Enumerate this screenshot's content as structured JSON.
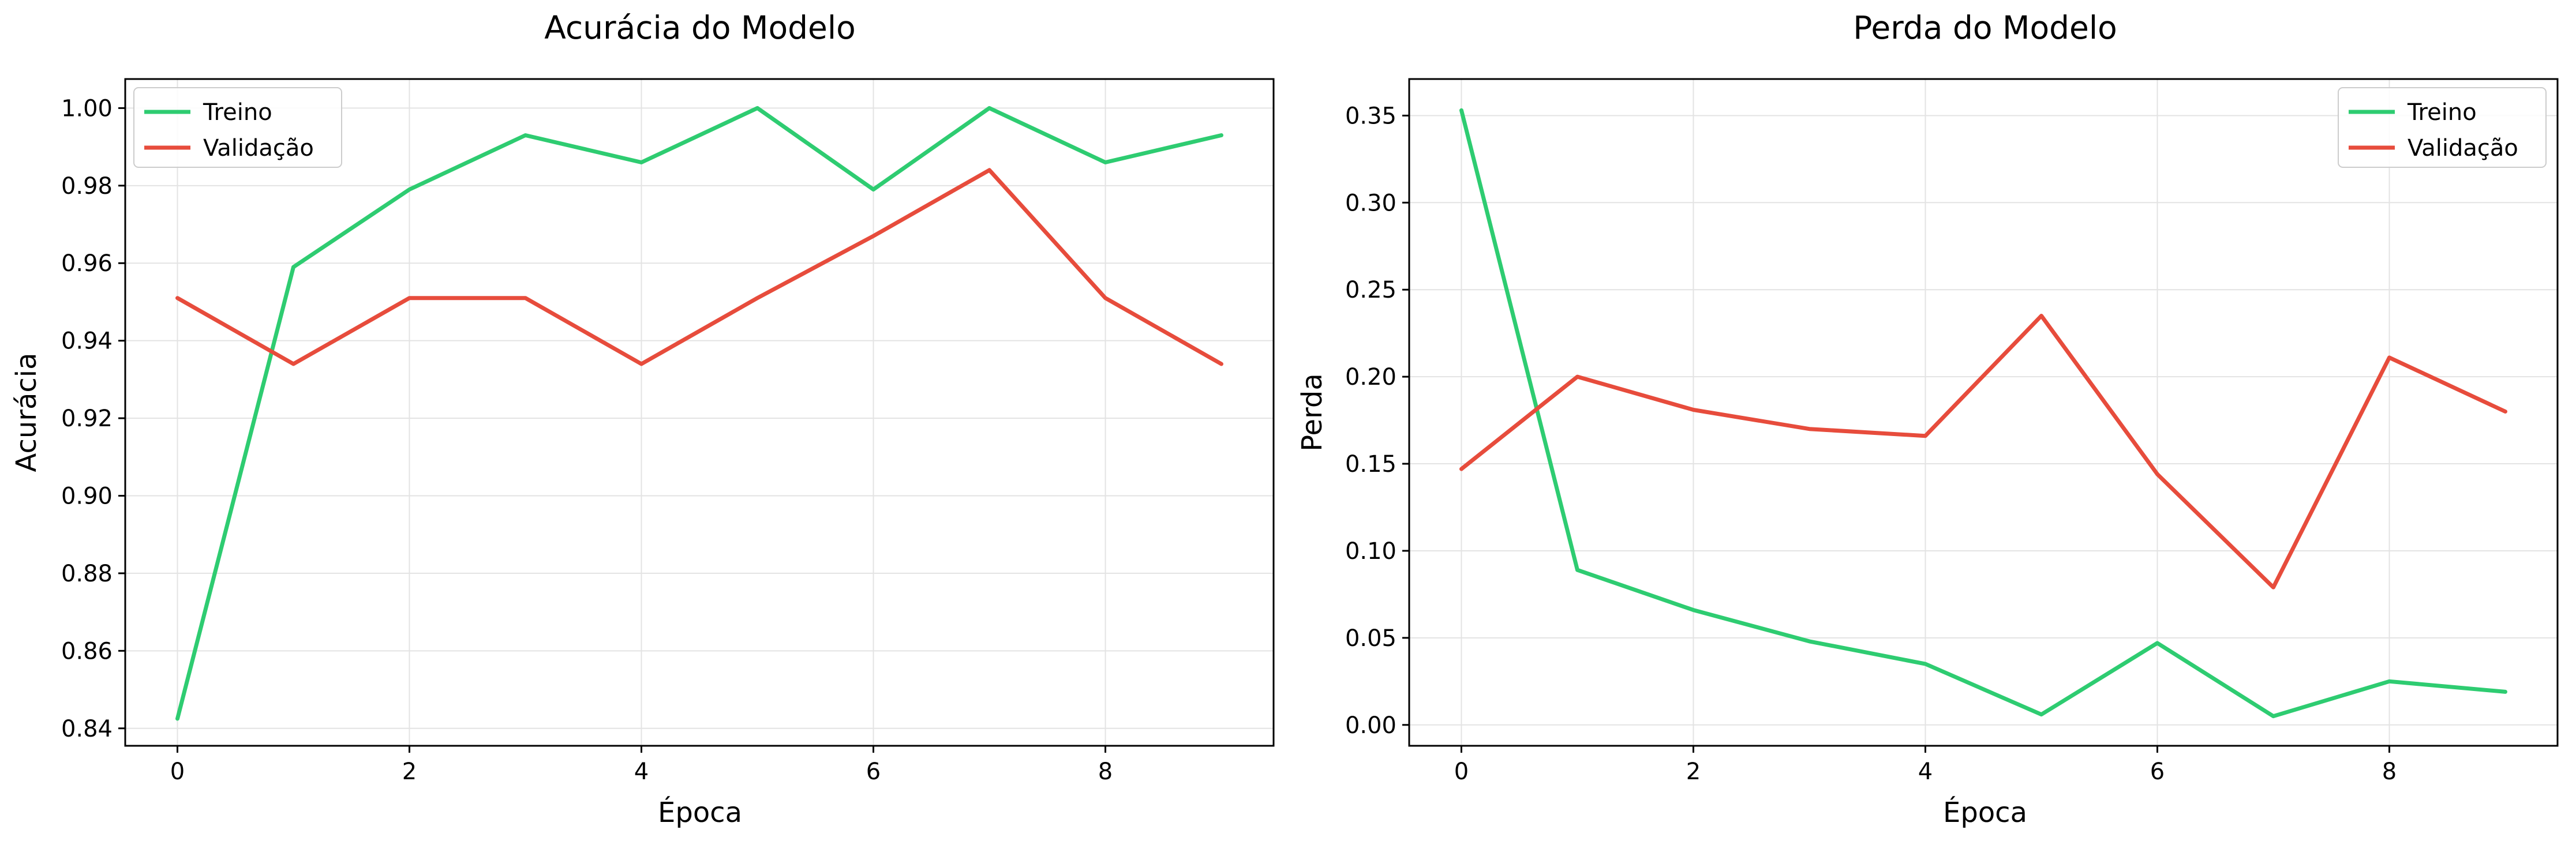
{
  "colors": {
    "treino": "#2ecc71",
    "validacao": "#e74c3c"
  },
  "chart_data": [
    {
      "type": "line",
      "title": "Acurácia do Modelo",
      "xlabel": "Época",
      "ylabel": "Acurácia",
      "x": [
        0,
        1,
        2,
        3,
        4,
        5,
        6,
        7,
        8,
        9
      ],
      "xlim": [
        -0.45,
        9.45
      ],
      "ylim": [
        0.8355,
        1.0075
      ],
      "xticks": [
        0,
        2,
        4,
        6,
        8
      ],
      "yticks": [
        0.84,
        0.86,
        0.88,
        0.9,
        0.92,
        0.94,
        0.96,
        0.98,
        1.0
      ],
      "ytick_labels": [
        "0.84",
        "0.86",
        "0.88",
        "0.90",
        "0.92",
        "0.94",
        "0.96",
        "0.98",
        "1.00"
      ],
      "grid": true,
      "legend": "upper-left",
      "series": [
        {
          "name": "Treino",
          "color": "#2ecc71",
          "values": [
            0.8425,
            0.959,
            0.979,
            0.993,
            0.986,
            1.0,
            0.979,
            1.0,
            0.986,
            0.993
          ]
        },
        {
          "name": "Validação",
          "color": "#e74c3c",
          "values": [
            0.951,
            0.934,
            0.951,
            0.951,
            0.934,
            0.951,
            0.967,
            0.984,
            0.951,
            0.934
          ]
        }
      ]
    },
    {
      "type": "line",
      "title": "Perda do Modelo",
      "xlabel": "Época",
      "ylabel": "Perda",
      "x": [
        0,
        1,
        2,
        3,
        4,
        5,
        6,
        7,
        8,
        9
      ],
      "xlim": [
        -0.45,
        9.45
      ],
      "ylim": [
        -0.012,
        0.371
      ],
      "xticks": [
        0,
        2,
        4,
        6,
        8
      ],
      "yticks": [
        0.0,
        0.05,
        0.1,
        0.15,
        0.2,
        0.25,
        0.3,
        0.35
      ],
      "ytick_labels": [
        "0.00",
        "0.05",
        "0.10",
        "0.15",
        "0.20",
        "0.25",
        "0.30",
        "0.35"
      ],
      "grid": true,
      "legend": "upper-right",
      "series": [
        {
          "name": "Treino",
          "color": "#2ecc71",
          "values": [
            0.353,
            0.089,
            0.066,
            0.048,
            0.035,
            0.006,
            0.047,
            0.005,
            0.025,
            0.019
          ]
        },
        {
          "name": "Validação",
          "color": "#e74c3c",
          "values": [
            0.147,
            0.2,
            0.181,
            0.17,
            0.166,
            0.235,
            0.144,
            0.079,
            0.211,
            0.18
          ]
        }
      ]
    }
  ]
}
